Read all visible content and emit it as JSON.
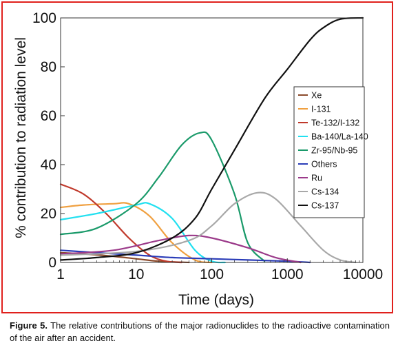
{
  "figure": {
    "caption_label": "Figure 5.",
    "caption_text": "The relative contributions of the major radionuclides to the radioactive contamination of the air after an accident."
  },
  "chart_data": {
    "type": "line",
    "xlabel": "Time (days)",
    "ylabel": "% contribution to radiation level",
    "x_scale": "log",
    "xlim": [
      1,
      10000
    ],
    "ylim": [
      0,
      100
    ],
    "x_ticks": [
      "1",
      "10",
      "100",
      "1000",
      "10000"
    ],
    "y_ticks": [
      "0",
      "20",
      "40",
      "60",
      "80",
      "100"
    ],
    "legend_position": "right",
    "series": [
      {
        "name": "Xe",
        "color": "#8b4a2b",
        "x": [
          1,
          2,
          5,
          10,
          20,
          50
        ],
        "y": [
          4,
          3.5,
          2.5,
          1.5,
          0.5,
          0
        ]
      },
      {
        "name": "I-131",
        "color": "#f0a040",
        "x": [
          1,
          2,
          5,
          8,
          15,
          30,
          60,
          100
        ],
        "y": [
          22.5,
          23.5,
          24,
          24,
          19,
          8,
          1,
          0
        ]
      },
      {
        "name": "Te-132/I-132",
        "color": "#c0392b",
        "x": [
          1,
          2,
          4,
          8,
          15,
          25,
          40
        ],
        "y": [
          32,
          28,
          20,
          10,
          3,
          0.5,
          0
        ]
      },
      {
        "name": "Ba-140/La-140",
        "color": "#22e0f0",
        "x": [
          1,
          3,
          10,
          15,
          30,
          60,
          100,
          150
        ],
        "y": [
          17.5,
          20,
          23.5,
          24,
          18,
          5,
          0.5,
          0
        ]
      },
      {
        "name": "Zr-95/Nb-95",
        "color": "#1a9a6a",
        "x": [
          1,
          3,
          10,
          20,
          40,
          70,
          100,
          200,
          300,
          500
        ],
        "y": [
          11.5,
          14,
          24,
          35,
          48,
          53,
          50,
          28,
          8,
          0.5
        ]
      },
      {
        "name": "Others",
        "color": "#2a3cb8",
        "x": [
          1,
          3,
          10,
          30,
          100,
          300,
          1000,
          2000
        ],
        "y": [
          5,
          4,
          3,
          2,
          1.5,
          1,
          0.5,
          0
        ]
      },
      {
        "name": "Ru",
        "color": "#9b3a8a",
        "x": [
          1,
          5,
          20,
          50,
          100,
          300,
          700,
          1500
        ],
        "y": [
          3.5,
          5,
          9,
          11,
          10,
          6,
          2,
          0
        ]
      },
      {
        "name": "Cs-134",
        "color": "#a8a8a8",
        "x": [
          1,
          10,
          50,
          100,
          200,
          400,
          700,
          1500,
          3000,
          5000,
          8000
        ],
        "y": [
          3,
          4.5,
          9,
          15,
          24,
          28.5,
          26,
          15,
          5,
          1,
          0
        ]
      },
      {
        "name": "Cs-137",
        "color": "#111111",
        "x": [
          1,
          3,
          10,
          30,
          60,
          100,
          200,
          500,
          1000,
          2000,
          3000,
          5000,
          10000
        ],
        "y": [
          1,
          2,
          4,
          10,
          18,
          30,
          46,
          67,
          79,
          91,
          96,
          99.5,
          100
        ]
      }
    ]
  }
}
